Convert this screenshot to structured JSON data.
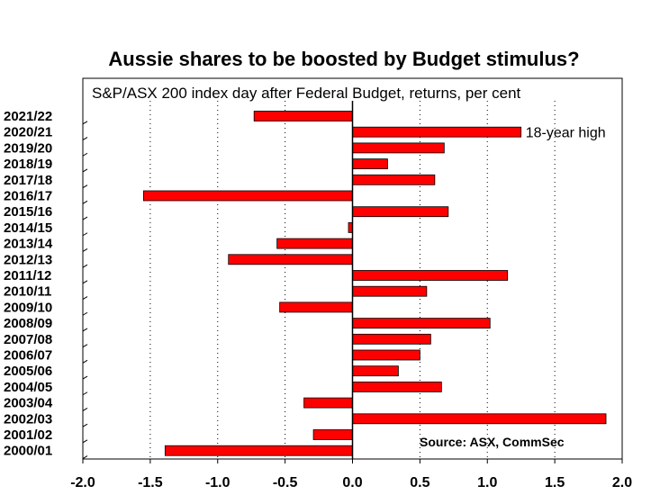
{
  "chart_data": {
    "type": "bar",
    "orientation": "horizontal",
    "title": "Aussie shares to be boosted by Budget stimulus?",
    "subtitle": "S&P/ASX 200 index day after Federal Budget, returns, per cent",
    "categories": [
      "2021/22",
      "2020/21",
      "2019/20",
      "2018/19",
      "2017/18",
      "2016/17",
      "2015/16",
      "2014/15",
      "2013/14",
      "2012/13",
      "2011/12",
      "2010/11",
      "2009/10",
      "2008/09",
      "2007/08",
      "2006/07",
      "2005/06",
      "2004/05",
      "2003/04",
      "2002/03",
      "2001/02",
      "2000/01"
    ],
    "values": [
      -0.73,
      1.25,
      0.68,
      0.26,
      0.61,
      -1.55,
      0.71,
      -0.03,
      -0.56,
      -0.92,
      1.15,
      0.55,
      -0.54,
      1.02,
      0.58,
      0.5,
      0.34,
      0.66,
      -0.36,
      1.88,
      -0.29,
      -1.39
    ],
    "xlim": [
      -2.0,
      2.0
    ],
    "x_ticks": [
      "-2.0",
      "-1.5",
      "-1.0",
      "-0.5",
      "0.0",
      "0.5",
      "1.0",
      "1.5",
      "2.0"
    ],
    "x_tick_values": [
      -2.0,
      -1.5,
      -1.0,
      -0.5,
      0.0,
      0.5,
      1.0,
      1.5,
      2.0
    ],
    "grid": "vertical dashed",
    "bar_color": "#ff0000",
    "bar_edge_color": "#000000",
    "annotations": [
      {
        "category": "2020/21",
        "text": "18-year high"
      }
    ],
    "source": "Source: ASX, CommSec"
  }
}
